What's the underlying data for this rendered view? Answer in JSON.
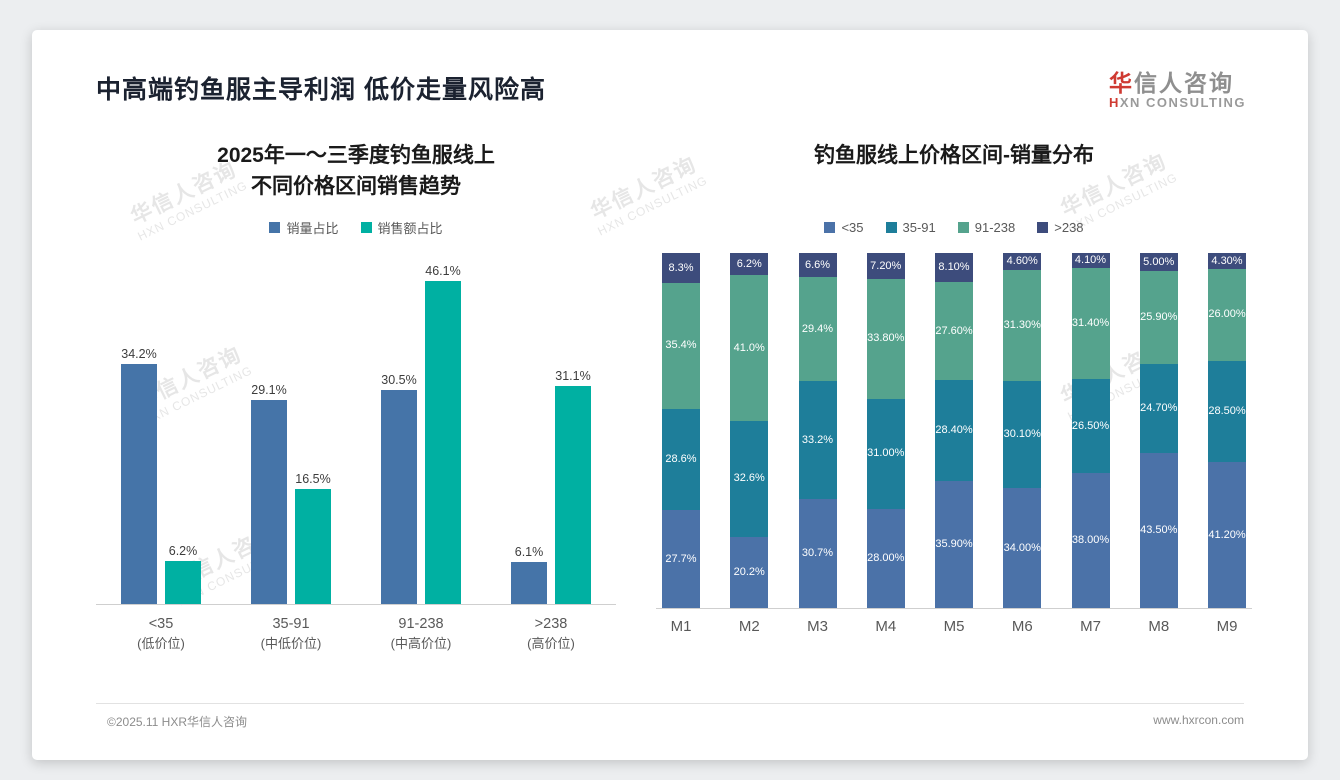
{
  "header": {
    "title": "中高端钓鱼服主导利润 低价走量风险高"
  },
  "logo": {
    "cn_first": "华",
    "cn_rest": "信人咨询",
    "en_first": "H",
    "en_rest": "XN CONSULTING"
  },
  "watermark": {
    "line1": "华信人咨询",
    "line2": "HXN CONSULTING"
  },
  "footer": {
    "left": "©2025.11 HXR华信人咨询",
    "right": "www.hxrcon.com"
  },
  "chart_data": [
    {
      "type": "bar",
      "title_lines": [
        "2025年一～三季度钓鱼服线上",
        "不同价格区间销售趋势"
      ],
      "categories": [
        {
          "line1": "<35",
          "line2": "(低价位)"
        },
        {
          "line1": "35-91",
          "line2": "(中低价位)"
        },
        {
          "line1": "91-238",
          "line2": "(中高价位)"
        },
        {
          "line1": ">238",
          "line2": "(高价位)"
        }
      ],
      "ylim": [
        0,
        50
      ],
      "grid": false,
      "legend_position": "top",
      "series": [
        {
          "name": "销量占比",
          "color": "#4574a8",
          "values": [
            34.2,
            29.1,
            30.5,
            6.1
          ],
          "labels": [
            "34.2%",
            "29.1%",
            "30.5%",
            "6.1%"
          ]
        },
        {
          "name": "销售额占比",
          "color": "#00b0a2",
          "values": [
            6.2,
            16.5,
            46.1,
            31.1
          ],
          "labels": [
            "6.2%",
            "16.5%",
            "46.1%",
            "31.1%"
          ]
        }
      ]
    },
    {
      "type": "stacked-bar-100",
      "title": "钓鱼服线上价格区间-销量分布",
      "categories": [
        "M1",
        "M2",
        "M3",
        "M4",
        "M5",
        "M6",
        "M7",
        "M8",
        "M9"
      ],
      "ylim": [
        0,
        100
      ],
      "grid": false,
      "legend_position": "top",
      "series": [
        {
          "name": "<35",
          "color": "#4b72a8",
          "values": [
            27.7,
            20.2,
            30.7,
            28.0,
            35.9,
            34.0,
            38.0,
            43.5,
            41.2
          ],
          "labels": [
            "27.7%",
            "20.2%",
            "30.7%",
            "28.00%",
            "35.90%",
            "34.00%",
            "38.00%",
            "43.50%",
            "41.20%"
          ]
        },
        {
          "name": "35-91",
          "color": "#1e7e9a",
          "values": [
            28.6,
            32.6,
            33.2,
            31.0,
            28.4,
            30.1,
            26.5,
            24.7,
            28.5
          ],
          "labels": [
            "28.6%",
            "32.6%",
            "33.2%",
            "31.00%",
            "28.40%",
            "30.10%",
            "26.50%",
            "24.70%",
            "28.50%"
          ]
        },
        {
          "name": "91-238",
          "color": "#55a38d",
          "values": [
            35.4,
            41.0,
            29.4,
            33.8,
            27.6,
            31.3,
            31.4,
            25.9,
            26.0
          ],
          "labels": [
            "35.4%",
            "41.0%",
            "29.4%",
            "33.80%",
            "27.60%",
            "31.30%",
            "31.40%",
            "25.90%",
            "26.00%"
          ]
        },
        {
          "name": ">238",
          "color": "#3d4c7c",
          "values": [
            8.3,
            6.2,
            6.6,
            7.2,
            8.1,
            4.6,
            4.1,
            5.0,
            4.3
          ],
          "labels": [
            "8.3%",
            "6.2%",
            "6.6%",
            "7.20%",
            "8.10%",
            "4.60%",
            "4.10%",
            "5.00%",
            "4.30%"
          ]
        }
      ]
    }
  ]
}
